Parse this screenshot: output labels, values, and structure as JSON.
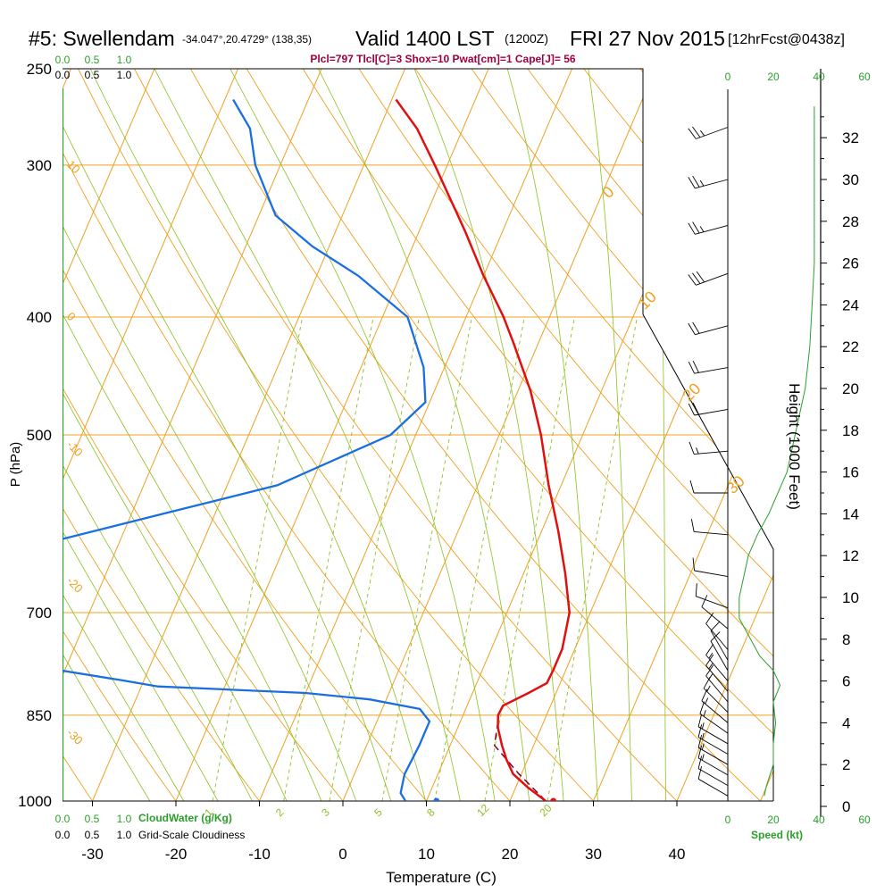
{
  "header": {
    "station": "#5: Swellendam",
    "coords": "-34.047°,20.4729° (138,35)",
    "valid": "Valid 1400 LST",
    "zulu": "(1200Z)",
    "date": "FRI 27 Nov 2015",
    "forecast": "[12hrFcst@0438z]",
    "indices": "Plcl=797 Tlcl[C]=3 Shox=10 Pwat[cm]=1 Cape[J]= 56"
  },
  "colors": {
    "temperature": "#e01010",
    "dewpoint": "#1a6fe0",
    "isotherm": "#f0a020",
    "dry_adiabat": "#f0a020",
    "moist_adiabat": "#8cc020",
    "mixing_ratio": "#8cc020",
    "cloud": "#2aa02a",
    "parcel": "#700030",
    "indices": "#a00040"
  },
  "chart_data": {
    "type": "skew-t",
    "xlabel": "Temperature (C)",
    "ylabel": "P (hPa)",
    "y2label": "Height (1000 Feet)",
    "x_ticks": [
      -30,
      -20,
      -10,
      0,
      10,
      20,
      30,
      40
    ],
    "p_ticks": [
      250,
      300,
      400,
      500,
      700,
      850,
      1000
    ],
    "height_ticks": [
      0,
      2,
      4,
      6,
      8,
      10,
      12,
      14,
      16,
      18,
      20,
      22,
      24,
      26,
      28,
      30,
      32
    ],
    "isotherm_labels": [
      {
        "t": -30,
        "text": "-30"
      },
      {
        "t": -20,
        "text": "-20"
      },
      {
        "t": -10,
        "text": "-10"
      },
      {
        "t": 0,
        "text": "0"
      },
      {
        "t": 10,
        "text": "10"
      },
      {
        "t": 20,
        "text": "20"
      },
      {
        "t": 30,
        "text": "30"
      }
    ],
    "left_isotherm_labels": [
      {
        "p": 300,
        "text": "10"
      },
      {
        "p": 400,
        "text": "0"
      },
      {
        "p": 510,
        "text": "-10"
      },
      {
        "p": 660,
        "text": "-20"
      },
      {
        "p": 880,
        "text": "-30"
      }
    ],
    "mixing_ratio_labels": [
      "1",
      "2",
      "3",
      "5",
      "8",
      "12",
      "20"
    ],
    "mixing_ratio_temps": [
      -15.6,
      -7.1,
      -1.6,
      4.7,
      11.0,
      17.0,
      24.5
    ],
    "temperature": [
      {
        "p": 1000,
        "t": 24.3
      },
      {
        "p": 975,
        "t": 21.5
      },
      {
        "p": 950,
        "t": 19.0
      },
      {
        "p": 925,
        "t": 17.5
      },
      {
        "p": 900,
        "t": 16.2
      },
      {
        "p": 870,
        "t": 14.8
      },
      {
        "p": 850,
        "t": 14.2
      },
      {
        "p": 835,
        "t": 14.3
      },
      {
        "p": 815,
        "t": 16.7
      },
      {
        "p": 800,
        "t": 18.4
      },
      {
        "p": 780,
        "t": 18.5
      },
      {
        "p": 750,
        "t": 18.5
      },
      {
        "p": 700,
        "t": 17.5
      },
      {
        "p": 650,
        "t": 15.0
      },
      {
        "p": 600,
        "t": 12.0
      },
      {
        "p": 550,
        "t": 8.5
      },
      {
        "p": 500,
        "t": 5.0
      },
      {
        "p": 460,
        "t": 1.5
      },
      {
        "p": 420,
        "t": -3.0
      },
      {
        "p": 400,
        "t": -5.5
      },
      {
        "p": 370,
        "t": -10.0
      },
      {
        "p": 340,
        "t": -14.5
      },
      {
        "p": 300,
        "t": -21.5
      },
      {
        "p": 280,
        "t": -25.5
      },
      {
        "p": 265,
        "t": -29.5
      }
    ],
    "dewpoint": [
      {
        "p": 1000,
        "t": 7.5
      },
      {
        "p": 985,
        "t": 6.5
      },
      {
        "p": 950,
        "t": 6.0
      },
      {
        "p": 900,
        "t": 6.3
      },
      {
        "p": 860,
        "t": 6.3
      },
      {
        "p": 840,
        "t": 4.5
      },
      {
        "p": 825,
        "t": -2.0
      },
      {
        "p": 815,
        "t": -10.0
      },
      {
        "p": 805,
        "t": -28.0
      },
      {
        "p": 795,
        "t": -33.0
      },
      {
        "p": 780,
        "t": -41.0
      },
      {
        "p": 760,
        "t": -49.0
      },
      {
        "p": 740,
        "t": -52.0
      },
      {
        "p": 700,
        "t": -55.5
      },
      {
        "p": 660,
        "t": -58.0
      },
      {
        "p": 640,
        "t": -58.5
      },
      {
        "p": 620,
        "t": -51.0
      },
      {
        "p": 580,
        "t": -36.0
      },
      {
        "p": 550,
        "t": -24.0
      },
      {
        "p": 500,
        "t": -13.0
      },
      {
        "p": 470,
        "t": -10.5
      },
      {
        "p": 440,
        "t": -12.5
      },
      {
        "p": 400,
        "t": -17.0
      },
      {
        "p": 370,
        "t": -25.0
      },
      {
        "p": 350,
        "t": -32.0
      },
      {
        "p": 330,
        "t": -38.0
      },
      {
        "p": 300,
        "t": -43.0
      },
      {
        "p": 280,
        "t": -45.5
      },
      {
        "p": 265,
        "t": -49.0
      }
    ],
    "parcel": [
      {
        "p": 1000,
        "t": 24.3
      },
      {
        "p": 950,
        "t": 19.7
      },
      {
        "p": 900,
        "t": 15.3
      },
      {
        "p": 860,
        "t": 14.5
      }
    ],
    "surface_temperature": 25.2,
    "surface_dewpoint": 11.2,
    "winds": [
      {
        "h": 32.5,
        "speed": 25,
        "dir": 250
      },
      {
        "h": 30.0,
        "speed": 25,
        "dir": 255
      },
      {
        "h": 27.8,
        "speed": 25,
        "dir": 255
      },
      {
        "h": 25.5,
        "speed": 30,
        "dir": 250
      },
      {
        "h": 23.0,
        "speed": 20,
        "dir": 255
      },
      {
        "h": 21.0,
        "speed": 20,
        "dir": 260
      },
      {
        "h": 19.0,
        "speed": 20,
        "dir": 260
      },
      {
        "h": 17.0,
        "speed": 15,
        "dir": 265
      },
      {
        "h": 15.0,
        "speed": 10,
        "dir": 270
      },
      {
        "h": 13.0,
        "speed": 10,
        "dir": 275
      },
      {
        "h": 11.0,
        "speed": 10,
        "dir": 280
      },
      {
        "h": 9.5,
        "speed": 10,
        "dir": 290
      },
      {
        "h": 8.5,
        "speed": 10,
        "dir": 310
      },
      {
        "h": 7.5,
        "speed": 10,
        "dir": 320
      },
      {
        "h": 7.0,
        "speed": 10,
        "dir": 330
      },
      {
        "h": 6.5,
        "speed": 10,
        "dir": 330
      },
      {
        "h": 6.0,
        "speed": 15,
        "dir": 320
      },
      {
        "h": 5.5,
        "speed": 15,
        "dir": 320
      },
      {
        "h": 5.0,
        "speed": 15,
        "dir": 320
      },
      {
        "h": 4.5,
        "speed": 15,
        "dir": 315
      },
      {
        "h": 4.0,
        "speed": 15,
        "dir": 310
      },
      {
        "h": 3.5,
        "speed": 15,
        "dir": 305
      },
      {
        "h": 3.0,
        "speed": 15,
        "dir": 300
      },
      {
        "h": 2.5,
        "speed": 15,
        "dir": 300
      },
      {
        "h": 2.0,
        "speed": 15,
        "dir": 300
      },
      {
        "h": 1.5,
        "speed": 15,
        "dir": 300
      },
      {
        "h": 1.0,
        "speed": 10,
        "dir": 300
      },
      {
        "h": 0.5,
        "speed": 10,
        "dir": 300
      }
    ],
    "wind_speed_profile": [
      {
        "h": 0.5,
        "s": 16
      },
      {
        "h": 1,
        "s": 17
      },
      {
        "h": 2,
        "s": 20
      },
      {
        "h": 3,
        "s": 20
      },
      {
        "h": 4,
        "s": 21
      },
      {
        "h": 5,
        "s": 20
      },
      {
        "h": 5.8,
        "s": 23
      },
      {
        "h": 6.5,
        "s": 20
      },
      {
        "h": 7.2,
        "s": 14
      },
      {
        "h": 8.0,
        "s": 10
      },
      {
        "h": 9.0,
        "s": 5
      },
      {
        "h": 10.0,
        "s": 5
      },
      {
        "h": 11.0,
        "s": 7
      },
      {
        "h": 12.0,
        "s": 9
      },
      {
        "h": 13.0,
        "s": 13
      },
      {
        "h": 14.0,
        "s": 18
      },
      {
        "h": 16.0,
        "s": 26
      },
      {
        "h": 18.0,
        "s": 30
      },
      {
        "h": 20.0,
        "s": 34
      },
      {
        "h": 22.0,
        "s": 36
      },
      {
        "h": 24.0,
        "s": 37
      },
      {
        "h": 26.0,
        "s": 38
      },
      {
        "h": 28.0,
        "s": 38
      },
      {
        "h": 30.0,
        "s": 38
      },
      {
        "h": 32.0,
        "s": 38
      },
      {
        "h": 33.5,
        "s": 38
      }
    ],
    "speed_ticks": [
      "0",
      "20",
      "40",
      "60"
    ],
    "speed_label": "Speed (kt)",
    "cloud_ticks": [
      "0.0",
      "0.5",
      "1.0"
    ],
    "cloud_water_label": "CloudWater (g/Kg)",
    "cloudiness_label": "Grid-Scale Cloudiness"
  }
}
